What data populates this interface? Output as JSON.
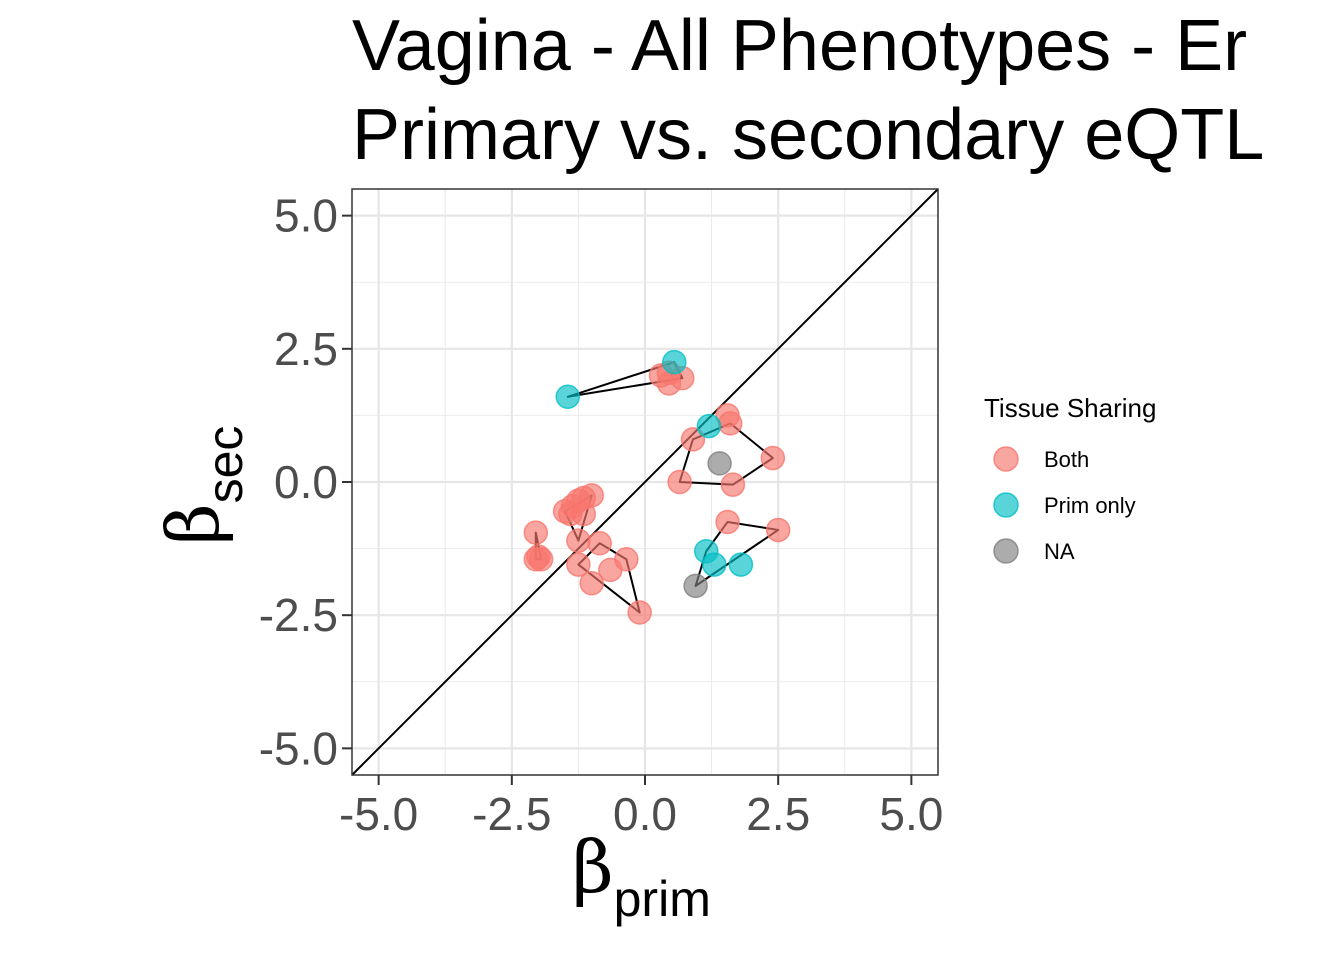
{
  "chart_data": {
    "type": "scatter",
    "title_lines": [
      "Vagina - All Phenotypes - Er",
      "Primary vs. secondary eQTL"
    ],
    "xlabel": {
      "symbol": "β",
      "sub": "prim"
    },
    "ylabel": {
      "symbol": "β",
      "sub": "sec"
    },
    "xlim": [
      -5.5,
      5.5
    ],
    "ylim": [
      -5.5,
      5.5
    ],
    "x_ticks": [
      -5.0,
      -2.5,
      0.0,
      2.5,
      5.0
    ],
    "y_ticks": [
      -5.0,
      -2.5,
      0.0,
      2.5,
      5.0
    ],
    "x_tick_labels": [
      "-5.0",
      "-2.5",
      "0.0",
      "2.5",
      "5.0"
    ],
    "y_tick_labels": [
      "5.0",
      "2.5",
      "0.0",
      "-2.5",
      "-5.0"
    ],
    "grid": true,
    "reference_line": "y = x",
    "legend": {
      "title": "Tissue Sharing",
      "placement": "right",
      "entries": [
        {
          "label": "Both",
          "color": "#F8766D"
        },
        {
          "label": "Prim only",
          "color": "#00BFC4"
        },
        {
          "label": "NA",
          "color": "#7F7F7F"
        }
      ]
    },
    "series": [
      {
        "name": "Both",
        "color": "#F8766D",
        "points": [
          [
            0.3,
            2.0
          ],
          [
            0.45,
            2.05
          ],
          [
            0.7,
            1.95
          ],
          [
            0.45,
            1.85
          ],
          [
            1.55,
            1.25
          ],
          [
            1.6,
            1.1
          ],
          [
            0.9,
            0.8
          ],
          [
            2.4,
            0.45
          ],
          [
            0.65,
            0.0
          ],
          [
            1.65,
            -0.05
          ],
          [
            1.55,
            -0.75
          ],
          [
            2.5,
            -0.9
          ],
          [
            -2.05,
            -0.95
          ],
          [
            -2.05,
            -1.45
          ],
          [
            -2.0,
            -1.4
          ],
          [
            -1.95,
            -1.45
          ],
          [
            -1.35,
            -0.45
          ],
          [
            -1.25,
            -0.35
          ],
          [
            -1.15,
            -0.3
          ],
          [
            -1.0,
            -0.25
          ],
          [
            -1.5,
            -0.55
          ],
          [
            -1.4,
            -0.6
          ],
          [
            -1.15,
            -0.6
          ],
          [
            -1.25,
            -1.1
          ],
          [
            -0.85,
            -1.15
          ],
          [
            -1.25,
            -1.55
          ],
          [
            -0.65,
            -1.65
          ],
          [
            -0.35,
            -1.45
          ],
          [
            -1.0,
            -1.9
          ],
          [
            -0.1,
            -2.45
          ]
        ]
      },
      {
        "name": "Prim only",
        "color": "#00BFC4",
        "points": [
          [
            0.55,
            2.25
          ],
          [
            -1.45,
            1.6
          ],
          [
            1.2,
            1.05
          ],
          [
            1.15,
            -1.3
          ],
          [
            1.3,
            -1.55
          ],
          [
            1.8,
            -1.55
          ]
        ]
      },
      {
        "name": "NA",
        "color": "#7F7F7F",
        "points": [
          [
            1.4,
            0.35
          ],
          [
            0.95,
            -1.95
          ]
        ]
      }
    ],
    "hulls": [
      [
        [
          -1.45,
          1.6
        ],
        [
          0.55,
          2.25
        ],
        [
          0.7,
          1.95
        ]
      ],
      [
        [
          0.9,
          0.8
        ],
        [
          1.6,
          1.1
        ],
        [
          2.4,
          0.45
        ],
        [
          1.65,
          -0.05
        ],
        [
          0.65,
          0.0
        ]
      ],
      [
        [
          0.95,
          -1.95
        ],
        [
          1.15,
          -1.3
        ],
        [
          1.55,
          -0.75
        ],
        [
          2.5,
          -0.9
        ]
      ],
      [
        [
          -2.05,
          -0.95
        ],
        [
          -1.95,
          -1.45
        ],
        [
          -2.05,
          -1.45
        ]
      ],
      [
        [
          -1.5,
          -0.55
        ],
        [
          -1.0,
          -0.25
        ],
        [
          -1.25,
          -1.1
        ]
      ],
      [
        [
          -1.25,
          -1.55
        ],
        [
          -0.85,
          -1.15
        ],
        [
          -0.35,
          -1.45
        ],
        [
          -0.1,
          -2.45
        ]
      ]
    ]
  }
}
